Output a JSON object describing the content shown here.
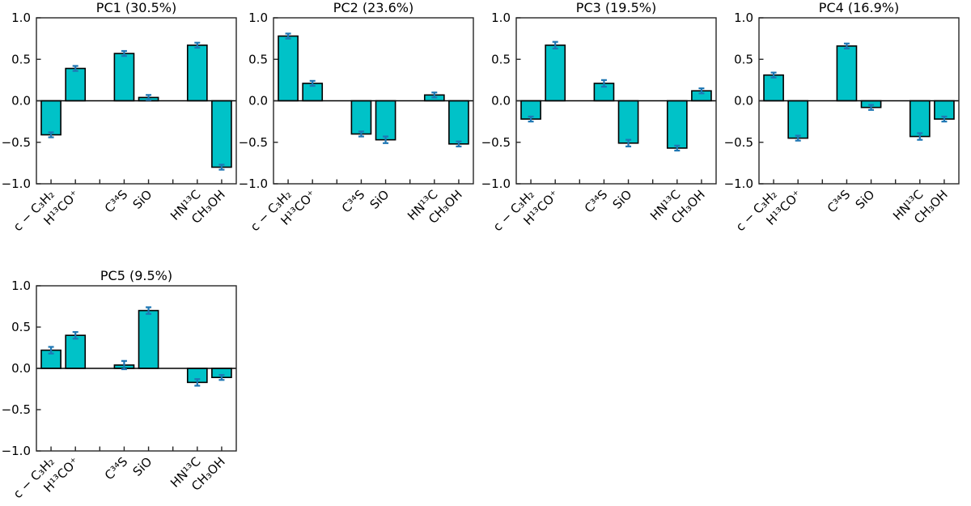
{
  "figure": {
    "background": "#ffffff"
  },
  "style": {
    "bar_fill": "#00c2c8",
    "bar_edge": "#000000",
    "error_color": "#1f77b4",
    "axis_color": "#262626",
    "zero_line_color": "#000000",
    "text_color": "#000000"
  },
  "chart_data": [
    {
      "type": "bar",
      "title": "PC1 (30.5%)",
      "categories": [
        "c − C₃H₂",
        "H¹³CO⁺",
        "C³⁴S",
        "SiO",
        "HN¹³C",
        "CH₃OH"
      ],
      "x_positions": [
        0,
        1,
        3,
        4,
        6,
        7
      ],
      "values": [
        -0.41,
        0.39,
        0.57,
        0.04,
        0.67,
        -0.8
      ],
      "errors": [
        0.03,
        0.03,
        0.03,
        0.03,
        0.03,
        0.03
      ],
      "ylim": [
        -1.0,
        1.0
      ],
      "yticks": [
        1.0,
        0.5,
        0.0,
        -0.5,
        -1.0
      ],
      "ytick_labels": [
        "1.0",
        "0.5",
        "0.0",
        "−0.5",
        "−1.0"
      ],
      "xlim": [
        -0.6,
        7.6
      ],
      "bar_width": 0.8,
      "grid": false,
      "zero_line": true,
      "legend": null
    },
    {
      "type": "bar",
      "title": "PC2 (23.6%)",
      "categories": [
        "c − C₃H₂",
        "H¹³CO⁺",
        "C³⁴S",
        "SiO",
        "HN¹³C",
        "CH₃OH"
      ],
      "x_positions": [
        0,
        1,
        3,
        4,
        6,
        7
      ],
      "values": [
        0.78,
        0.21,
        -0.4,
        -0.47,
        0.07,
        -0.52
      ],
      "errors": [
        0.03,
        0.03,
        0.03,
        0.04,
        0.03,
        0.03
      ],
      "ylim": [
        -1.0,
        1.0
      ],
      "yticks": [
        1.0,
        0.5,
        0.0,
        -0.5,
        -1.0
      ],
      "ytick_labels": [
        "1.0",
        "0.5",
        "0.0",
        "−0.5",
        "−1.0"
      ],
      "xlim": [
        -0.6,
        7.6
      ],
      "bar_width": 0.8,
      "grid": false,
      "zero_line": true,
      "legend": null
    },
    {
      "type": "bar",
      "title": "PC3 (19.5%)",
      "categories": [
        "c − C₃H₂",
        "H¹³CO⁺",
        "C³⁴S",
        "SiO",
        "HN¹³C",
        "CH₃OH"
      ],
      "x_positions": [
        0,
        1,
        3,
        4,
        6,
        7
      ],
      "values": [
        -0.22,
        0.67,
        0.21,
        -0.51,
        -0.57,
        0.12
      ],
      "errors": [
        0.03,
        0.04,
        0.04,
        0.04,
        0.03,
        0.03
      ],
      "ylim": [
        -1.0,
        1.0
      ],
      "yticks": [
        1.0,
        0.5,
        0.0,
        -0.5,
        -1.0
      ],
      "ytick_labels": [
        "1.0",
        "0.5",
        "0.0",
        "−0.5",
        "−1.0"
      ],
      "xlim": [
        -0.6,
        7.6
      ],
      "bar_width": 0.8,
      "grid": false,
      "zero_line": true,
      "legend": null
    },
    {
      "type": "bar",
      "title": "PC4 (16.9%)",
      "categories": [
        "c − C₃H₂",
        "H¹³CO⁺",
        "C³⁴S",
        "SiO",
        "HN¹³C",
        "CH₃OH"
      ],
      "x_positions": [
        0,
        1,
        3,
        4,
        6,
        7
      ],
      "values": [
        0.31,
        -0.45,
        0.66,
        -0.08,
        -0.43,
        -0.22
      ],
      "errors": [
        0.03,
        0.03,
        0.03,
        0.03,
        0.04,
        0.03
      ],
      "ylim": [
        -1.0,
        1.0
      ],
      "yticks": [
        1.0,
        0.5,
        0.0,
        -0.5,
        -1.0
      ],
      "ytick_labels": [
        "1.0",
        "0.5",
        "0.0",
        "−0.5",
        "−1.0"
      ],
      "xlim": [
        -0.6,
        7.6
      ],
      "bar_width": 0.8,
      "grid": false,
      "zero_line": true,
      "legend": null
    },
    {
      "type": "bar",
      "title": "PC5 (9.5%)",
      "categories": [
        "c − C₃H₂",
        "H¹³CO⁺",
        "C³⁴S",
        "SiO",
        "HN¹³C",
        "CH₃OH"
      ],
      "x_positions": [
        0,
        1,
        3,
        4,
        6,
        7
      ],
      "values": [
        0.22,
        0.4,
        0.04,
        0.7,
        -0.17,
        -0.11
      ],
      "errors": [
        0.04,
        0.04,
        0.05,
        0.04,
        0.04,
        0.03
      ],
      "ylim": [
        -1.0,
        1.0
      ],
      "yticks": [
        1.0,
        0.5,
        0.0,
        -0.5,
        -1.0
      ],
      "ytick_labels": [
        "1.0",
        "0.5",
        "0.0",
        "−0.5",
        "−1.0"
      ],
      "xlim": [
        -0.6,
        7.6
      ],
      "bar_width": 0.8,
      "grid": false,
      "zero_line": true,
      "legend": null
    }
  ]
}
